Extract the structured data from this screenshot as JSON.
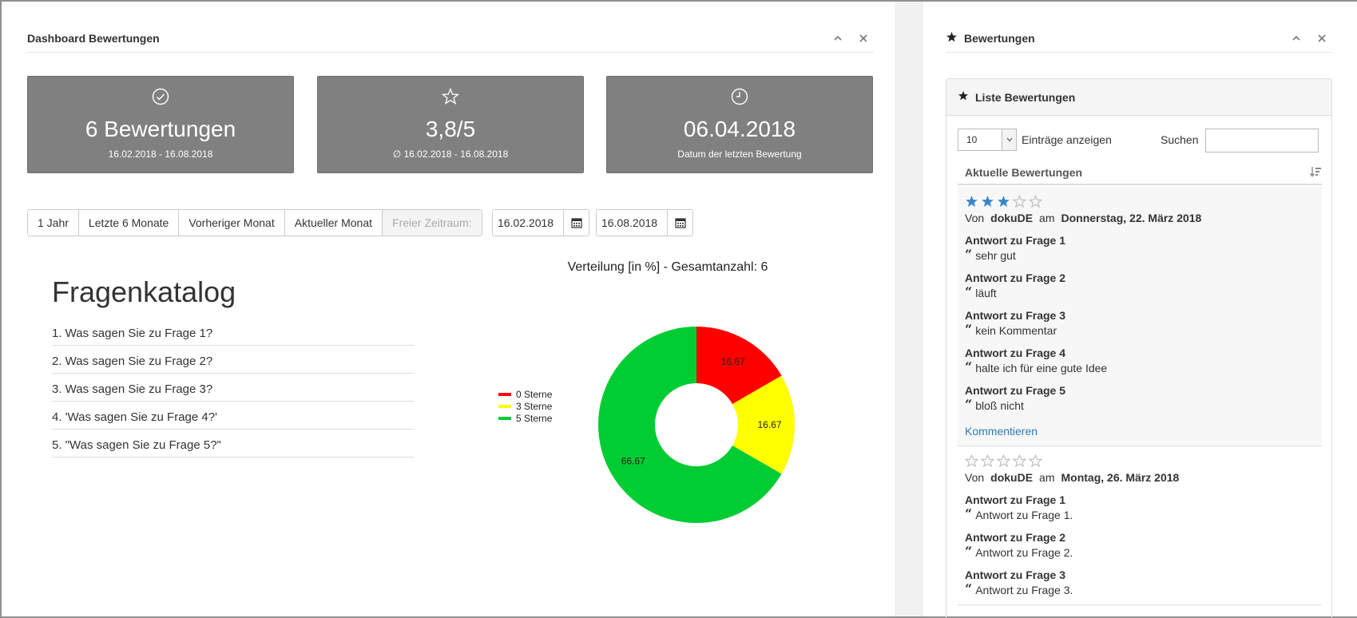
{
  "dashboard": {
    "title": "Dashboard Bewertungen",
    "cards": [
      {
        "icon": "check-circle-icon",
        "value": "6 Bewertungen",
        "sub": "16.02.2018 - 16.08.2018"
      },
      {
        "icon": "star-outline-icon",
        "value": "3,8/5",
        "sub": "∅ 16.02.2018 - 16.08.2018"
      },
      {
        "icon": "clock-icon",
        "value": "06.04.2018",
        "sub": "Datum der letzten Bewertung"
      }
    ],
    "filters": [
      "1 Jahr",
      "Letzte 6 Monate",
      "Vorheriger Monat",
      "Aktueller Monat",
      "Freier Zeitraum:"
    ],
    "date_from": "16.02.2018",
    "date_to": "16.08.2018",
    "catalog": {
      "title": "Fragenkatalog",
      "questions": [
        "1. Was sagen Sie zu Frage 1?",
        "2. Was sagen Sie zu Frage 2?",
        "3. Was sagen Sie zu Frage 3?",
        "4. 'Was sagen Sie zu Frage 4?'",
        "5. \"Was sagen Sie zu Frage 5?\""
      ]
    }
  },
  "chart_data": {
    "type": "pie",
    "title": "Verteilung [in %] - Gesamtanzahl: 6",
    "categories": [
      "0 Sterne",
      "3 Sterne",
      "5 Sterne"
    ],
    "values": [
      16.67,
      16.67,
      66.67
    ],
    "labels": [
      "16.67",
      "16.67",
      "66.67"
    ],
    "colors": [
      "#ff0000",
      "#ffff00",
      "#00cc33"
    ],
    "legend": "left"
  },
  "ratings": {
    "title": "Bewertungen",
    "list_title": "Liste Bewertungen",
    "page_size": "10",
    "page_size_label": "Einträge anzeigen",
    "search_label": "Suchen",
    "column_header": "Aktuelle Bewertungen",
    "from_word": "Von",
    "at_word": "am",
    "comment_link": "Kommentieren",
    "reviews": [
      {
        "stars": 3,
        "author": "dokuDE",
        "date": "Donnerstag, 22. März 2018",
        "answers": [
          {
            "q": "Antwort zu Frage 1",
            "a": "sehr gut"
          },
          {
            "q": "Antwort zu Frage 2",
            "a": "läuft"
          },
          {
            "q": "Antwort zu Frage 3",
            "a": "kein Kommentar"
          },
          {
            "q": "Antwort zu Frage 4",
            "a": "halte ich für eine gute Idee"
          },
          {
            "q": "Antwort zu Frage 5",
            "a": "bloß nicht"
          }
        ]
      },
      {
        "stars": 0,
        "author": "dokuDE",
        "date": "Montag, 26. März 2018",
        "answers": [
          {
            "q": "Antwort zu Frage 1",
            "a": "Antwort zu Frage 1."
          },
          {
            "q": "Antwort zu Frage 2",
            "a": "Antwort zu Frage 2."
          },
          {
            "q": "Antwort zu Frage 3",
            "a": "Antwort zu Frage 3."
          }
        ]
      }
    ],
    "star_color": "#3a87c8",
    "star_empty_color": "#bbbbbb"
  }
}
